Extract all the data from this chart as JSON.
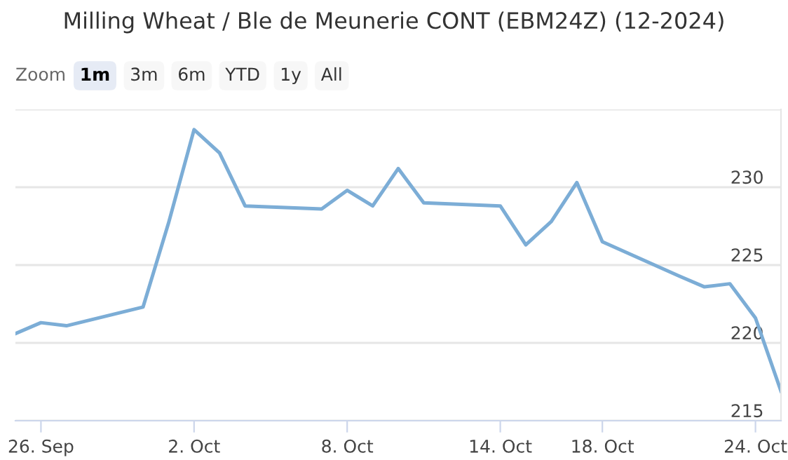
{
  "chart_data": {
    "type": "line",
    "title": "Milling Wheat / Ble de Meunerie CONT (EBM24Z) (12-2024)",
    "annotations": [
      "Zoom",
      "1m",
      "3m",
      "6m",
      "YTD",
      "1y",
      "All"
    ],
    "x": [
      "2024-09-25",
      "2024-09-26",
      "2024-09-27",
      "2024-09-30",
      "2024-10-01",
      "2024-10-02",
      "2024-10-03",
      "2024-10-04",
      "2024-10-07",
      "2024-10-08",
      "2024-10-09",
      "2024-10-10",
      "2024-10-11",
      "2024-10-14",
      "2024-10-15",
      "2024-10-16",
      "2024-10-17",
      "2024-10-18",
      "2024-10-21",
      "2024-10-22",
      "2024-10-23",
      "2024-10-24",
      "2024-10-25"
    ],
    "series": [
      {
        "color": "#7cadd6",
        "values": [
          220.6,
          221.3,
          221.1,
          222.3,
          227.7,
          233.7,
          232.2,
          228.8,
          228.6,
          229.8,
          228.8,
          231.2,
          229.0,
          228.8,
          226.3,
          227.8,
          230.3,
          226.5,
          224.3,
          223.6,
          223.8,
          221.6,
          216.9
        ]
      }
    ],
    "xlim": [
      "2024-09-25",
      "2024-10-25"
    ],
    "xticks": [
      {
        "value": "2024-09-26",
        "label": "26. Sep"
      },
      {
        "value": "2024-10-02",
        "label": "2. Oct"
      },
      {
        "value": "2024-10-08",
        "label": "8. Oct"
      },
      {
        "value": "2024-10-14",
        "label": "14. Oct"
      },
      {
        "value": "2024-10-18",
        "label": "18. Oct"
      },
      {
        "value": "2024-10-24",
        "label": "24. Oct"
      }
    ],
    "ylim": [
      215,
      235
    ],
    "yticks": [
      215,
      220,
      225,
      230,
      {
        "value": 235,
        "label": null
      }
    ],
    "grid": "y",
    "marker": "none",
    "line_style": "solid"
  }
}
